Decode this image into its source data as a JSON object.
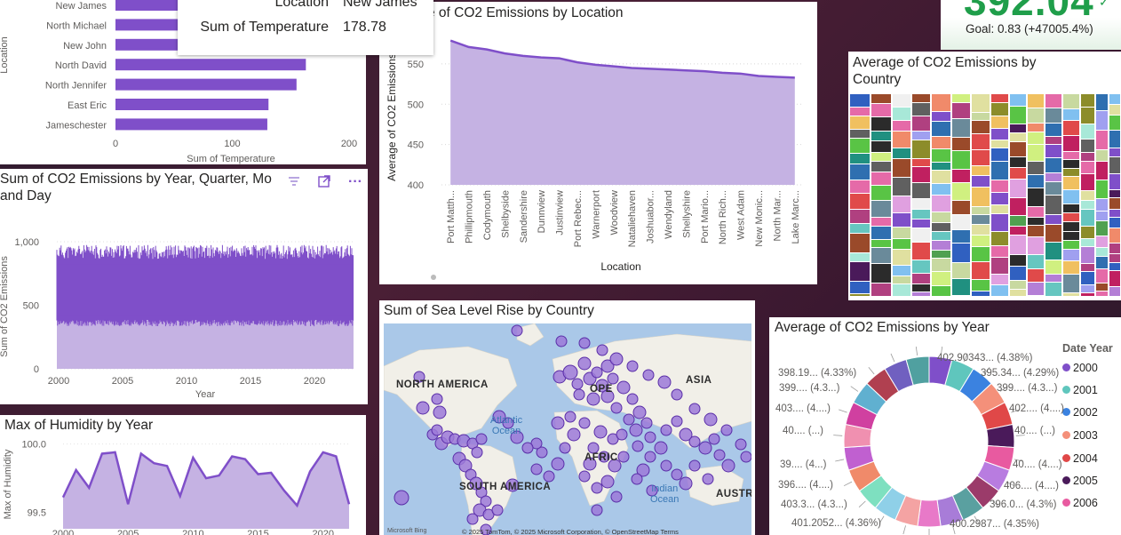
{
  "tooltip": {
    "location_label": "Location",
    "location_value": "New James",
    "temp_label": "Sum of Temperature",
    "temp_value": "178.78"
  },
  "kpi": {
    "value": "392.04",
    "goal": "Goal: 0.83 (+47005.4%)",
    "status_color": "#1f9e4a"
  },
  "temp_bar": {
    "title": "",
    "chart_data": {
      "type": "bar",
      "orientation": "horizontal",
      "categories": [
        "New James",
        "North Michael",
        "New John",
        "North David",
        "North Jennifer",
        "East Eric",
        "Jameschester"
      ],
      "values": [
        178.78,
        178,
        176,
        163,
        155,
        131,
        130
      ],
      "xlabel": "Sum of Temperature",
      "ylabel": "Location",
      "xlim": [
        0,
        200
      ],
      "xticks": [
        "0",
        "100",
        "200"
      ]
    }
  },
  "co2_location": {
    "title": "Average of CO2 Emissions by Location",
    "title_visible": "e of CO2 Emissions by Location",
    "chart_data": {
      "type": "area",
      "categories": [
        "Port Matth...",
        "Phillipmouth",
        "Codymouth",
        "Shelbyside",
        "Sandershire",
        "Dunnview",
        "Justinview",
        "Port Rebec...",
        "Warnerport",
        "Woodview",
        "Nataliehaven",
        "Joshuabor...",
        "Wendyland",
        "Shellyshire",
        "Port Mario...",
        "North Rich...",
        "West Adam",
        "New Monic...",
        "North Mar...",
        "Lake Marc..."
      ],
      "values": [
        579,
        571,
        568,
        563,
        560,
        558,
        557,
        552,
        549,
        547,
        545,
        544,
        543,
        542,
        541,
        539,
        538,
        535,
        534,
        533
      ],
      "xlabel": "Location",
      "ylabel": "Average of CO2 Emissions",
      "ylim": [
        400,
        580
      ],
      "yticks": [
        "400",
        "450",
        "500",
        "550"
      ]
    }
  },
  "co2_country": {
    "title_line1": "Average of CO2 Emissions by",
    "title_line2": "Country",
    "chart_data": {
      "type": "heatmap",
      "kind": "treemap",
      "palette": [
        "#7f4fc9",
        "#66c6c0",
        "#2f6fb0",
        "#f08a6a",
        "#e04a4a",
        "#4a1a5a",
        "#e56aa8",
        "#8c8c2a",
        "#b47fd6",
        "#2b2b2b",
        "#c8d9a0",
        "#59c445"
      ]
    }
  },
  "co2_time": {
    "title_line1": "Sum of CO2 Emissions by Year, Quarter, Mo",
    "title_line2": "and Day",
    "chart_data": {
      "type": "area",
      "x": [
        "2000",
        "2005",
        "2010",
        "2015",
        "2020"
      ],
      "ylabel": "Sum of CO2 Emissions",
      "xlabel": "Year",
      "ylim": [
        0,
        1000
      ],
      "yticks": [
        "0",
        "500",
        "1,000"
      ],
      "band_high": 920,
      "band_low": 360
    }
  },
  "humidity": {
    "title": "Max of Humidity by Year",
    "chart_data": {
      "type": "area",
      "x": [
        2000,
        2001,
        2002,
        2003,
        2004,
        2005,
        2006,
        2007,
        2008,
        2009,
        2010,
        2011,
        2012,
        2013,
        2014,
        2015,
        2016,
        2017,
        2018,
        2019,
        2020,
        2021,
        2022
      ],
      "values": [
        99.61,
        99.81,
        99.68,
        99.93,
        99.94,
        99.56,
        99.93,
        99.86,
        99.84,
        99.62,
        99.9,
        99.75,
        99.77,
        99.91,
        99.89,
        99.78,
        99.79,
        99.66,
        99.55,
        99.8,
        99.94,
        99.91,
        99.56
      ],
      "ylabel": "Max of Humidity",
      "ylim": [
        99.4,
        100.0
      ],
      "yticks": [
        "99.5",
        "100.0"
      ],
      "xticks": [
        "2000",
        "2005",
        "2010",
        "2015",
        "2020"
      ]
    }
  },
  "sea_level": {
    "title": "Sum of Sea Level Rise by Country",
    "labels": {
      "north_america": "NORTH AMERICA",
      "asia": "ASIA",
      "south_america": "SOUTH AMERICA",
      "australia": "AUSTR",
      "africa": "AFRIC",
      "atlantic_1": "Atlantic",
      "atlantic_2": "Ocean",
      "indian_1": "Indian",
      "indian_2": "Ocean",
      "europe": "OPE"
    },
    "attribution_left": "Microsoft Bing",
    "attribution": "© 2025 TomTom, © 2025 Microsoft Corporation, © OpenStreetMap  Terms"
  },
  "co2_year": {
    "title": "Average of CO2 Emissions by Year",
    "legend_title": "Date Year",
    "legend": [
      {
        "label": "2000",
        "color": "#7f4fc9"
      },
      {
        "label": "2001",
        "color": "#5fc6bd"
      },
      {
        "label": "2002",
        "color": "#3b82e0"
      },
      {
        "label": "2003",
        "color": "#f4907a"
      },
      {
        "label": "2004",
        "color": "#e04848"
      },
      {
        "label": "2005",
        "color": "#4a1a5a"
      },
      {
        "label": "2006",
        "color": "#e85aa0"
      }
    ],
    "slice_colors": [
      "#7f4fc9",
      "#5fc6bd",
      "#3b82e0",
      "#f4907a",
      "#e04848",
      "#4a1a5a",
      "#e85aa0",
      "#b87ce0",
      "#9b3b6a",
      "#5aa0a0",
      "#a87cd8",
      "#e879c8",
      "#f4a3a3",
      "#8fd0e8",
      "#7ee0c0",
      "#f08a6a",
      "#c060d0",
      "#f090b0",
      "#d040a0",
      "#60b0d0",
      "#b04050",
      "#7060c0",
      "#50a0a0"
    ],
    "labels": {
      "l0": "402.90343... (4.38%)",
      "l1": "395.34... (4.29%)",
      "l2": "399.... (4.3...)",
      "l3": "402.... (4....)",
      "l4": "40.... (...)",
      "l5": "40.... (4....)",
      "l6": "406.... (4....)",
      "l7": "396.0... (4.3%)",
      "l8": "400.2987... (4.35%)",
      "l9": "401.2052... (4.36%)",
      "l10": "403.3... (4.3...)",
      "l11": "396.... (4....)",
      "l12": "39.... (4...)",
      "l13": "40.... (...)",
      "l14": "403.... (4....)",
      "l15": "399.... (4.3...)",
      "l16": "398.19... (4.33%)"
    }
  }
}
